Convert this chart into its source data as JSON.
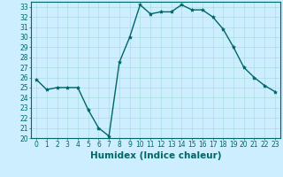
{
  "x": [
    0,
    1,
    2,
    3,
    4,
    5,
    6,
    7,
    8,
    9,
    10,
    11,
    12,
    13,
    14,
    15,
    16,
    17,
    18,
    19,
    20,
    21,
    22,
    23
  ],
  "y": [
    25.8,
    24.8,
    25.0,
    25.0,
    25.0,
    22.8,
    21.0,
    20.2,
    27.5,
    30.0,
    33.2,
    32.3,
    32.5,
    32.5,
    33.2,
    32.7,
    32.7,
    32.0,
    30.8,
    29.0,
    27.0,
    26.0,
    25.2,
    24.6
  ],
  "line_color": "#006666",
  "marker": "*",
  "marker_size": 3,
  "bg_color": "#cceeff",
  "grid_color": "#aadddd",
  "xlabel": "Humidex (Indice chaleur)",
  "xlim": [
    -0.5,
    23.5
  ],
  "ylim": [
    20,
    33.5
  ],
  "xticks": [
    0,
    1,
    2,
    3,
    4,
    5,
    6,
    7,
    8,
    9,
    10,
    11,
    12,
    13,
    14,
    15,
    16,
    17,
    18,
    19,
    20,
    21,
    22,
    23
  ],
  "yticks": [
    20,
    21,
    22,
    23,
    24,
    25,
    26,
    27,
    28,
    29,
    30,
    31,
    32,
    33
  ],
  "tick_fontsize": 5.5,
  "xlabel_fontsize": 7.5
}
